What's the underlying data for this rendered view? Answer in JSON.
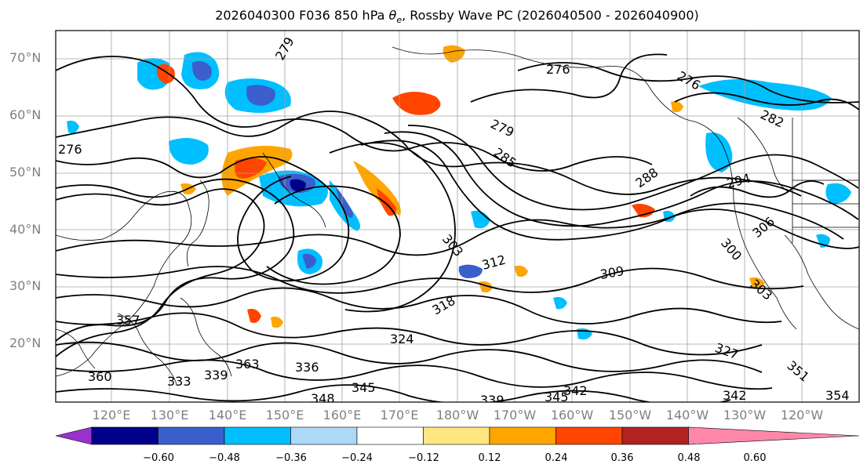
{
  "title": {
    "main": "2026040300 F036 850 hPa ",
    "symbol": "θ",
    "subscript": "e",
    "rest": ", Rossby Wave PC (2026040500 - 2026040900)"
  },
  "map": {
    "projection": "equirectangular (Pacific-centered)",
    "lat_labels": [
      "70°N",
      "60°N",
      "50°N",
      "40°N",
      "30°N",
      "20°N"
    ],
    "lon_labels": [
      "120°E",
      "130°E",
      "140°E",
      "150°E",
      "160°E",
      "170°E",
      "180°W",
      "170°W",
      "160°W",
      "150°W",
      "140°W",
      "130°W",
      "120°W"
    ],
    "gridlines": true,
    "contour_field": "850 hPa theta-e (K)",
    "contour_labels": [
      "279",
      "276",
      "276",
      "276",
      "279",
      "282",
      "285",
      "288",
      "294",
      "303",
      "312",
      "309",
      "306",
      "300",
      "303",
      "318",
      "324",
      "327",
      "336",
      "339",
      "345",
      "345",
      "342",
      "348",
      "339",
      "342",
      "333",
      "351",
      "354",
      "357",
      "360",
      "363"
    ],
    "shading_field": "Rossby Wave PC"
  },
  "colorbar": {
    "extend": "both",
    "ticks": [
      "−0.60",
      "−0.48",
      "−0.36",
      "−0.24",
      "−0.12",
      "0.12",
      "0.24",
      "0.36",
      "0.48",
      "0.60"
    ],
    "colors": [
      "#9932cc",
      "#00008b",
      "#3a5fcd",
      "#00bfff",
      "#add8f7",
      "#ffffff",
      "#ffe680",
      "#ffa500",
      "#ff4500",
      "#b22222",
      "#ff88aa"
    ]
  }
}
